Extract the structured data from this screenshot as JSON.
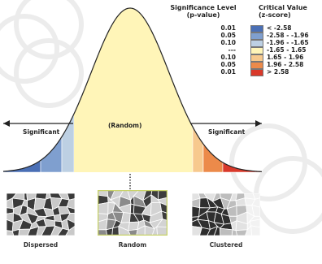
{
  "legend": {
    "pvalue_header_line1": "Significance Level",
    "pvalue_header_line2": "(p-value)",
    "zscore_header_line1": "Critical Value",
    "zscore_header_line2": "(z-score)",
    "rows": [
      {
        "p": "0.01",
        "z": "< -2.58",
        "color": "#4a6fb5"
      },
      {
        "p": "0.05",
        "z": "-2.58 - -1.96",
        "color": "#7f9fcf"
      },
      {
        "p": "0.10",
        "z": "-1.96 - -1.65",
        "color": "#bdd0e3"
      },
      {
        "p": "---",
        "z": "-1.65 - 1.65",
        "color": "#fff5b8"
      },
      {
        "p": "0.10",
        "z": "1.65 - 1.96",
        "color": "#f7c98e"
      },
      {
        "p": "0.05",
        "z": "1.96 - 2.58",
        "color": "#ec8a4a"
      },
      {
        "p": "0.01",
        "z": "> 2.58",
        "color": "#d9392a"
      }
    ]
  },
  "curve": {
    "random_label": "(Random)",
    "significant_left": "Significant",
    "significant_right": "Significant"
  },
  "maps": [
    {
      "label": "Dispersed",
      "pattern": "dispersed"
    },
    {
      "label": "Random",
      "pattern": "random"
    },
    {
      "label": "Clustered",
      "pattern": "clustered"
    }
  ]
}
